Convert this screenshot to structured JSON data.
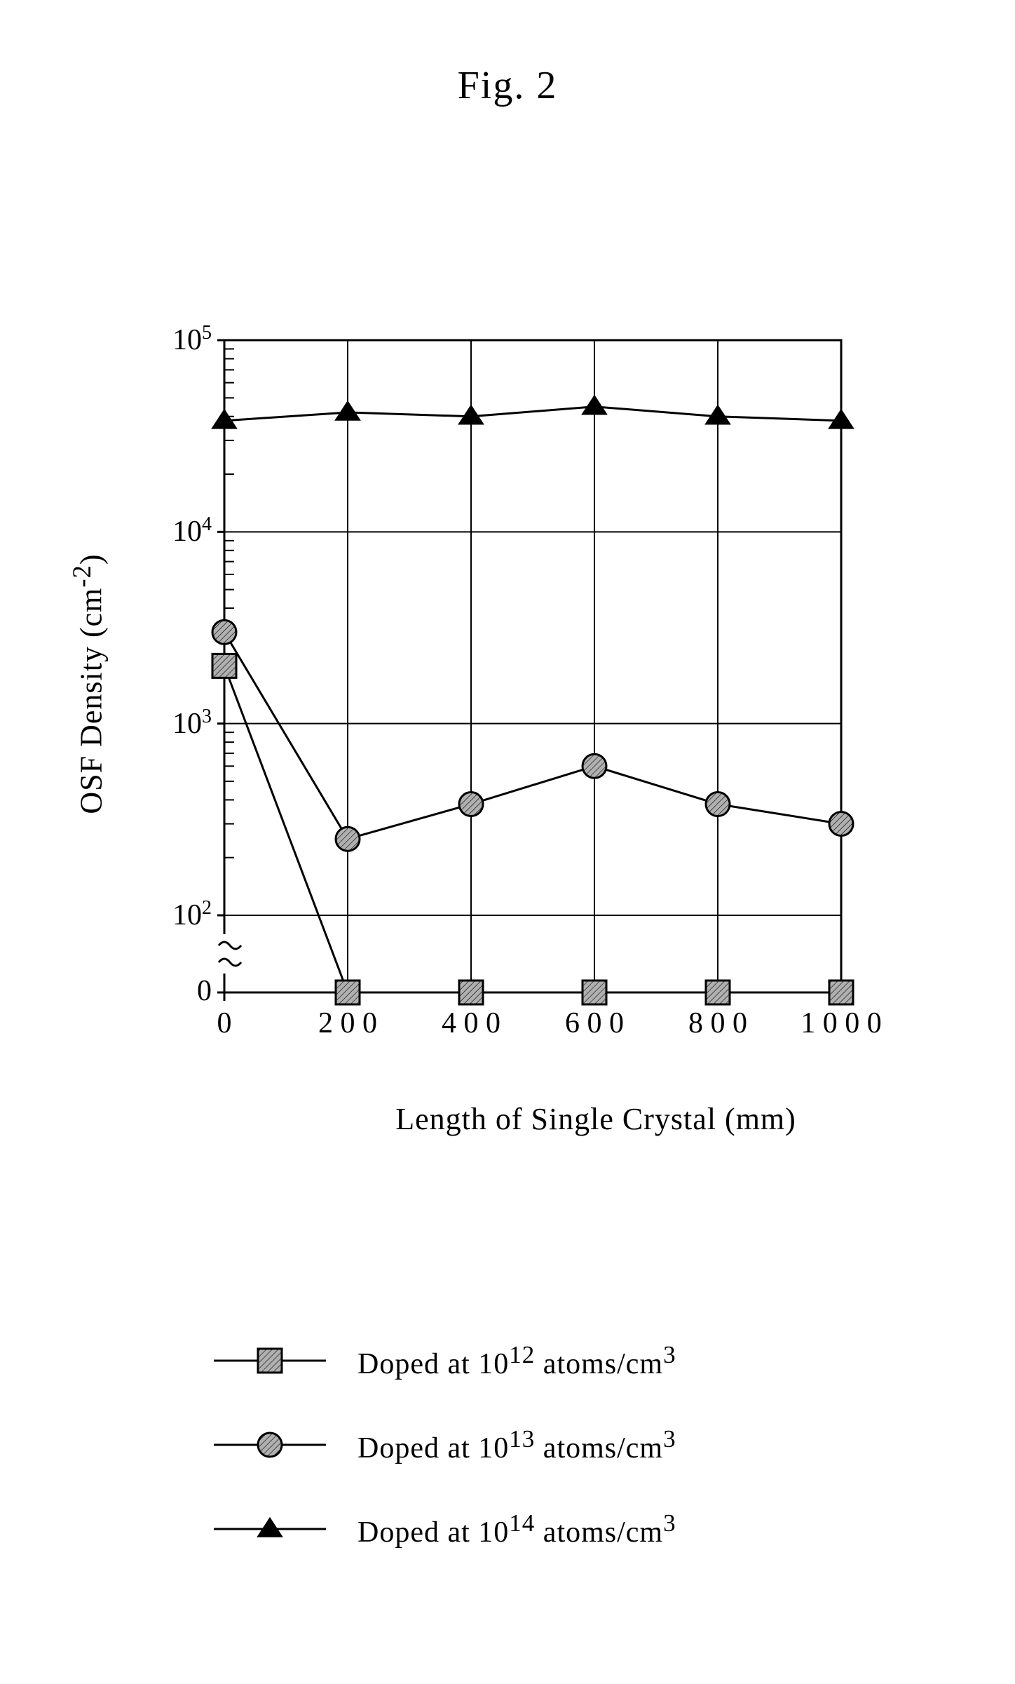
{
  "figure_title": "Fig. 2",
  "chart": {
    "type": "line",
    "xlabel": "Length of Single Crystal  (mm)",
    "ylabel_html": "OSF Density (cm<sup>-2</sup>)",
    "xlim": [
      0,
      1000
    ],
    "xticks": [
      0,
      200,
      400,
      600,
      800,
      1000
    ],
    "yscale": "log-with-broken-zero",
    "yticks": [
      {
        "label": "0",
        "type": "plain"
      },
      {
        "label": "10^2",
        "type": "exp",
        "base": "10",
        "exp": "2"
      },
      {
        "label": "10^3",
        "type": "exp",
        "base": "10",
        "exp": "3"
      },
      {
        "label": "10^4",
        "type": "exp",
        "base": "10",
        "exp": "4"
      },
      {
        "label": "10^5",
        "type": "exp",
        "base": "10",
        "exp": "5"
      }
    ],
    "axis_color": "#000000",
    "axis_line_width": 3,
    "gridline_width": 2,
    "minor_tick_width": 2,
    "series_line_width": 3,
    "marker_size": 22,
    "minor_ticks_per_decade": [
      2,
      3,
      4,
      5,
      6,
      7,
      8,
      9
    ],
    "series": [
      {
        "name": "Doped at 10^14 atoms/cm^3",
        "marker": "triangle-solid",
        "color": "#000000",
        "x": [
          0,
          200,
          400,
          600,
          800,
          1000
        ],
        "y": [
          38000,
          42000,
          40000,
          45000,
          40000,
          38000
        ]
      },
      {
        "name": "Doped at 10^13 atoms/cm^3",
        "marker": "circle-hatched",
        "stroke": "#000000",
        "fill": "#b0b0b0",
        "x": [
          0,
          200,
          400,
          600,
          800,
          1000
        ],
        "y": [
          3000,
          250,
          380,
          600,
          380,
          300
        ]
      },
      {
        "name": "Doped at 10^12 atoms/cm^3",
        "marker": "square-hatched",
        "stroke": "#000000",
        "fill": "#b0b0b0",
        "x": [
          0,
          200,
          400,
          600,
          800,
          1000
        ],
        "y": [
          2000,
          0,
          0,
          0,
          0,
          0
        ]
      }
    ]
  },
  "legend": [
    {
      "marker": "square-hatched",
      "label_html": "Doped at 10<sup>12</sup> atoms/cm<sup>3</sup>"
    },
    {
      "marker": "circle-hatched",
      "label_html": "Doped at 10<sup>13</sup> atoms/cm<sup>3</sup>"
    },
    {
      "marker": "triangle-solid",
      "label_html": "Doped at 10<sup>14</sup> atoms/cm<sup>3</sup>"
    }
  ],
  "colors": {
    "background": "#ffffff",
    "axis": "#000000",
    "hatched_fill": "#b0b0b0"
  },
  "fontsize": {
    "title": 56,
    "axis_label": 44,
    "tick": 42,
    "legend": 42
  }
}
